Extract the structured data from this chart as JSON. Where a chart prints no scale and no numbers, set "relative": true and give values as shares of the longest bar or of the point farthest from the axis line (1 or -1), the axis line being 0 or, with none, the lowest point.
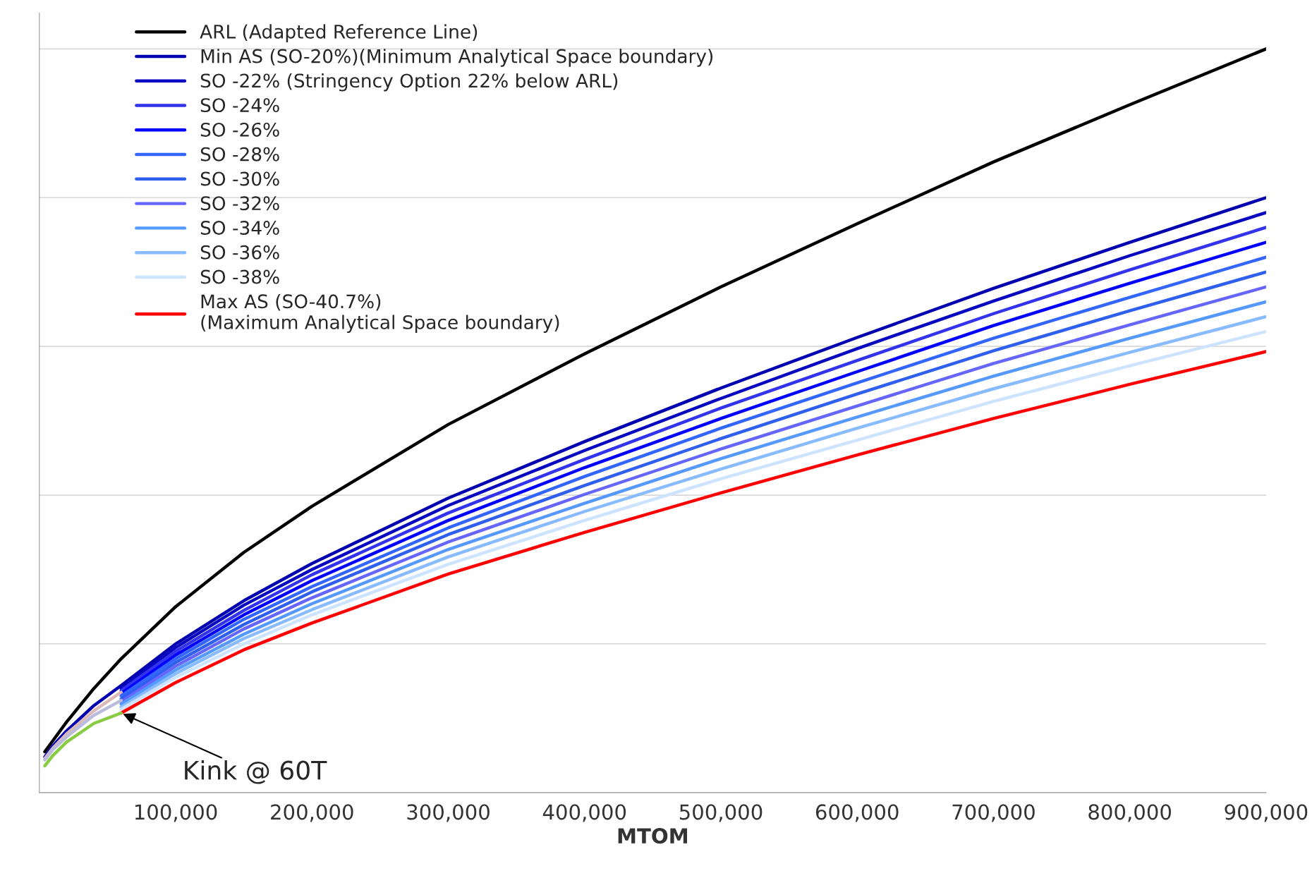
{
  "chart_data": {
    "type": "line",
    "relative": true,
    "xlabel": "MTOM",
    "xlim": [
      0,
      900000
    ],
    "xticks": [
      {
        "value": 0,
        "label": null
      },
      {
        "value": 100000,
        "label": "100,000"
      },
      {
        "value": 200000,
        "label": "200,000"
      },
      {
        "value": 300000,
        "label": "300,000"
      },
      {
        "value": 400000,
        "label": "400,000"
      },
      {
        "value": 500000,
        "label": "500,000"
      },
      {
        "value": 600000,
        "label": "600,000"
      },
      {
        "value": 700000,
        "label": "700,000"
      },
      {
        "value": 800000,
        "label": "800,000"
      },
      {
        "value": 900000,
        "label": "900,000"
      }
    ],
    "grid": "y",
    "legend": "top left",
    "marker": "none",
    "line_style": "solid",
    "annotations": [
      {
        "text": "Kink @ 60T",
        "x": 60000,
        "y": 0.107
      }
    ],
    "series": [
      {
        "name": "ARL (Adapted Reference Line)",
        "color": "#000000",
        "x": [
          4000,
          10000,
          20000,
          40000,
          60000,
          100000,
          150000,
          200000,
          300000,
          400000,
          500000,
          600000,
          700000,
          800000,
          900000
        ],
        "values": [
          0.055,
          0.07,
          0.095,
          0.14,
          0.18,
          0.25,
          0.323,
          0.385,
          0.495,
          0.59,
          0.68,
          0.765,
          0.848,
          0.925,
          1.0
        ]
      },
      {
        "name": "Min AS (SO-20%)(Minimum Analytical Space boundary)",
        "color": "#0000b0",
        "x": [
          4000,
          10000,
          20000,
          40000,
          60000,
          100000,
          150000,
          200000,
          300000,
          400000,
          500000,
          600000,
          700000,
          800000,
          900000
        ],
        "values": [
          0.048,
          0.063,
          0.083,
          0.117,
          0.144,
          0.2,
          0.258,
          0.308,
          0.396,
          0.472,
          0.544,
          0.612,
          0.678,
          0.74,
          0.8
        ]
      },
      {
        "name": "SO -22% (Stringency Option 22% below ARL)",
        "color": "#0808c0",
        "x": [
          60000,
          100000,
          150000,
          200000,
          300000,
          400000,
          500000,
          600000,
          700000,
          800000,
          900000
        ],
        "values": [
          0.14,
          0.195,
          0.252,
          0.3,
          0.386,
          0.46,
          0.53,
          0.597,
          0.661,
          0.722,
          0.78
        ]
      },
      {
        "name": "SO -24%",
        "color": "#3333ee",
        "x": [
          60000,
          100000,
          150000,
          200000,
          300000,
          400000,
          500000,
          600000,
          700000,
          800000,
          900000
        ],
        "values": [
          0.137,
          0.19,
          0.245,
          0.293,
          0.376,
          0.448,
          0.517,
          0.581,
          0.644,
          0.703,
          0.76
        ]
      },
      {
        "name": "SO -26%",
        "color": "#0000ff",
        "x": [
          60000,
          100000,
          150000,
          200000,
          300000,
          400000,
          500000,
          600000,
          700000,
          800000,
          900000
        ],
        "values": [
          0.133,
          0.185,
          0.239,
          0.285,
          0.366,
          0.437,
          0.503,
          0.566,
          0.628,
          0.685,
          0.74
        ]
      },
      {
        "name": "SO -28%",
        "color": "#3366ff",
        "x": [
          60000,
          100000,
          150000,
          200000,
          300000,
          400000,
          500000,
          600000,
          700000,
          800000,
          900000
        ],
        "values": [
          0.13,
          0.18,
          0.233,
          0.277,
          0.356,
          0.425,
          0.49,
          0.551,
          0.611,
          0.666,
          0.72
        ]
      },
      {
        "name": "SO -30%",
        "color": "#2f5fee",
        "x": [
          60000,
          100000,
          150000,
          200000,
          300000,
          400000,
          500000,
          600000,
          700000,
          800000,
          900000
        ],
        "values": [
          0.126,
          0.175,
          0.226,
          0.27,
          0.347,
          0.413,
          0.476,
          0.536,
          0.594,
          0.648,
          0.7
        ]
      },
      {
        "name": "SO -32%",
        "color": "#6666ff",
        "x": [
          60000,
          100000,
          150000,
          200000,
          300000,
          400000,
          500000,
          600000,
          700000,
          800000,
          900000
        ],
        "values": [
          0.122,
          0.17,
          0.22,
          0.262,
          0.337,
          0.401,
          0.462,
          0.52,
          0.577,
          0.629,
          0.68
        ]
      },
      {
        "name": "SO -34%",
        "color": "#5599ff",
        "x": [
          60000,
          100000,
          150000,
          200000,
          300000,
          400000,
          500000,
          600000,
          700000,
          800000,
          900000
        ],
        "values": [
          0.119,
          0.165,
          0.213,
          0.254,
          0.327,
          0.389,
          0.449,
          0.505,
          0.56,
          0.611,
          0.66
        ]
      },
      {
        "name": "SO -36%",
        "color": "#88bbff",
        "x": [
          60000,
          100000,
          150000,
          200000,
          300000,
          400000,
          500000,
          600000,
          700000,
          800000,
          900000
        ],
        "values": [
          0.115,
          0.16,
          0.207,
          0.246,
          0.317,
          0.378,
          0.435,
          0.49,
          0.543,
          0.592,
          0.64
        ]
      },
      {
        "name": "SO -38%",
        "color": "#cce4ff",
        "x": [
          60000,
          100000,
          150000,
          200000,
          300000,
          400000,
          500000,
          600000,
          700000,
          800000,
          900000
        ],
        "values": [
          0.112,
          0.155,
          0.2,
          0.239,
          0.307,
          0.366,
          0.422,
          0.474,
          0.526,
          0.574,
          0.62
        ]
      },
      {
        "name": "Max AS (SO-40.7%)\n(Maximum Analytical Space boundary)",
        "color": "#ff0000",
        "x": [
          60000,
          100000,
          150000,
          200000,
          300000,
          400000,
          500000,
          600000,
          700000,
          800000,
          900000
        ],
        "values": [
          0.107,
          0.148,
          0.192,
          0.228,
          0.294,
          0.35,
          0.403,
          0.454,
          0.503,
          0.549,
          0.593
        ]
      },
      {
        "color": "#ddb8b8",
        "x": [
          4000,
          10000,
          20000,
          40000,
          60000
        ],
        "values": [
          0.046,
          0.06,
          0.079,
          0.11,
          0.135
        ]
      },
      {
        "color": "#bbbbdd",
        "x": [
          4000,
          10000,
          20000,
          40000,
          60000
        ],
        "values": [
          0.044,
          0.058,
          0.075,
          0.104,
          0.124
        ]
      },
      {
        "color": "#88cc44",
        "x": [
          4000,
          10000,
          20000,
          40000,
          60000
        ],
        "values": [
          0.036,
          0.05,
          0.068,
          0.093,
          0.107
        ]
      }
    ]
  }
}
